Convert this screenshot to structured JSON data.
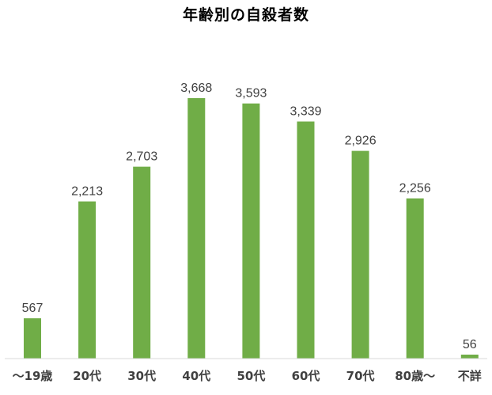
{
  "chart_data": {
    "type": "bar",
    "title": "年齢別の自殺者数",
    "categories": [
      "～19歳",
      "20代",
      "30代",
      "40代",
      "50代",
      "60代",
      "70代",
      "80歳～",
      "不詳"
    ],
    "values": [
      567,
      2213,
      2703,
      3668,
      3593,
      3339,
      2926,
      2256,
      56
    ],
    "value_labels": [
      "567",
      "2,213",
      "2,703",
      "3,668",
      "3,593",
      "3,339",
      "2,926",
      "2,256",
      "56"
    ],
    "xlabel": "",
    "ylabel": "",
    "ylim": [
      0,
      3668
    ],
    "grid": false,
    "legend": "none",
    "bar_color": "#70ad47",
    "axis_color": "#d9d9d9"
  }
}
